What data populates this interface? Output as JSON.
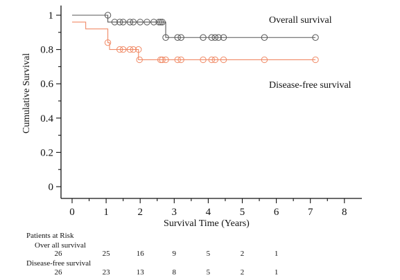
{
  "chart_data": {
    "type": "line",
    "subtype": "kaplan-meier",
    "xlabel": "Survival Time (Years)",
    "ylabel": "Cumulative Survival",
    "xlim": [
      0,
      8
    ],
    "ylim": [
      0,
      1
    ],
    "x_ticks": [
      "0",
      "1",
      "2",
      "3",
      "4",
      "5",
      "6",
      "7",
      "8"
    ],
    "y_ticks": [
      "0",
      "0.2",
      "0.4",
      "0.6",
      "0.8",
      "1"
    ],
    "grid": false,
    "series": [
      {
        "name": "Overall survival",
        "color": "#555555",
        "steps": [
          [
            0,
            1.0
          ],
          [
            1.05,
            0.96
          ],
          [
            2.75,
            0.87
          ],
          [
            7.15,
            0.87
          ]
        ],
        "censored": [
          [
            1.05,
            1.0
          ],
          [
            1.25,
            0.96
          ],
          [
            1.4,
            0.96
          ],
          [
            1.5,
            0.96
          ],
          [
            1.7,
            0.96
          ],
          [
            1.8,
            0.96
          ],
          [
            2.0,
            0.96
          ],
          [
            2.2,
            0.96
          ],
          [
            2.4,
            0.96
          ],
          [
            2.55,
            0.96
          ],
          [
            2.6,
            0.96
          ],
          [
            2.65,
            0.96
          ],
          [
            2.75,
            0.87
          ],
          [
            3.1,
            0.87
          ],
          [
            3.2,
            0.87
          ],
          [
            3.85,
            0.87
          ],
          [
            4.1,
            0.87
          ],
          [
            4.2,
            0.87
          ],
          [
            4.3,
            0.87
          ],
          [
            4.45,
            0.87
          ],
          [
            5.65,
            0.87
          ],
          [
            7.15,
            0.87
          ]
        ]
      },
      {
        "name": "Disease-free survival",
        "color": "#f08a66",
        "steps": [
          [
            0,
            0.96
          ],
          [
            0.4,
            0.92
          ],
          [
            1.05,
            0.84
          ],
          [
            1.1,
            0.8
          ],
          [
            1.95,
            0.74
          ],
          [
            7.15,
            0.74
          ]
        ],
        "censored": [
          [
            1.05,
            0.84
          ],
          [
            1.4,
            0.8
          ],
          [
            1.5,
            0.8
          ],
          [
            1.7,
            0.8
          ],
          [
            1.8,
            0.8
          ],
          [
            1.95,
            0.8
          ],
          [
            1.98,
            0.74
          ],
          [
            2.6,
            0.74
          ],
          [
            2.65,
            0.74
          ],
          [
            2.75,
            0.74
          ],
          [
            3.1,
            0.74
          ],
          [
            3.2,
            0.74
          ],
          [
            3.85,
            0.74
          ],
          [
            4.1,
            0.74
          ],
          [
            4.2,
            0.74
          ],
          [
            4.45,
            0.74
          ],
          [
            5.65,
            0.74
          ],
          [
            7.15,
            0.74
          ]
        ]
      }
    ],
    "risk_table": {
      "title": "Patients at Risk",
      "rows": [
        {
          "label": "Over all survival",
          "values": [
            "26",
            "25",
            "16",
            "9",
            "5",
            "2",
            "1"
          ]
        },
        {
          "label": "Disease-free survival",
          "values": [
            "26",
            "23",
            "13",
            "8",
            "5",
            "2",
            "1"
          ]
        }
      ],
      "times": [
        0,
        1,
        2,
        3,
        4,
        5,
        6
      ]
    }
  }
}
